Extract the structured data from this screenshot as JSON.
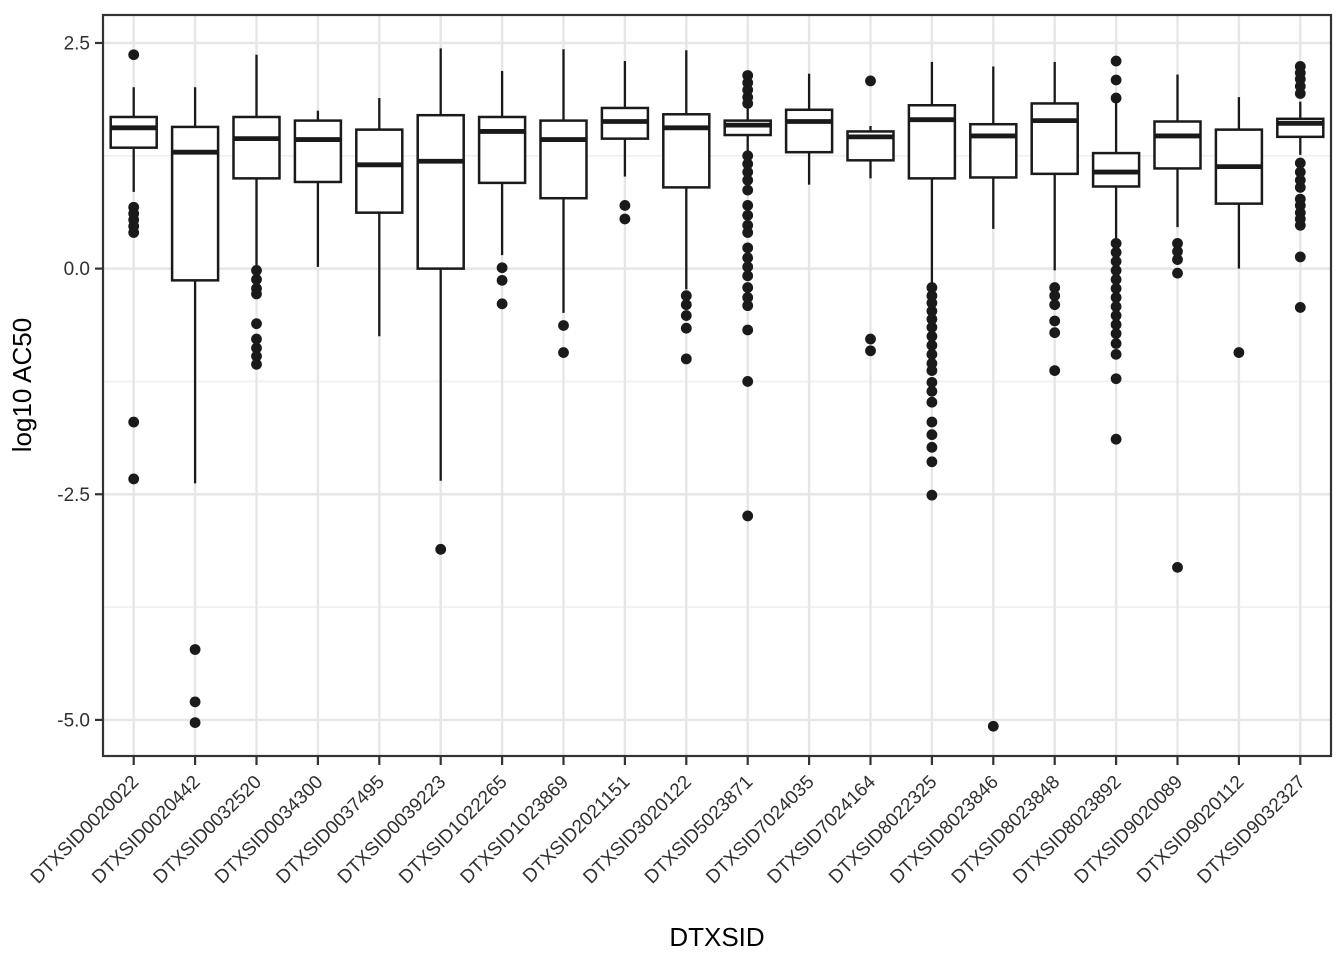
{
  "figure": {
    "kind": "ggplot-style boxplot panel",
    "background": "#ffffff"
  },
  "colors": {
    "box_stroke": "#1a1a1a",
    "box_fill": "#ffffff",
    "median": "#1a1a1a",
    "whisker": "#1a1a1a",
    "outlier": "#1a1a1a",
    "grid_major": "#e6e6e6",
    "grid_minor": "#efefef",
    "panel_border": "#333333",
    "tick_mark": "#333333",
    "tick_text": "#303030",
    "title_text": "#000000",
    "background": "#ffffff"
  },
  "chart_data": {
    "type": "boxplot",
    "title": "",
    "xlabel": "DTXSID",
    "ylabel": "log10 AC50",
    "grid": true,
    "legend": "none",
    "ylim": [
      -5.4,
      2.81
    ],
    "y_major_ticks": [
      2.5,
      0.0,
      -2.5,
      -5.0
    ],
    "y_tick_labels": [
      "2.5",
      "0.0",
      "-2.5",
      "-5.0"
    ],
    "y_minor_ticks": [
      1.25,
      -1.25,
      -3.75
    ],
    "x_tick_angle_deg": 45,
    "categories": [
      "DTXSID0020022",
      "DTXSID0020442",
      "DTXSID0032520",
      "DTXSID0034300",
      "DTXSID0037495",
      "DTXSID0039223",
      "DTXSID1022265",
      "DTXSID1023869",
      "DTXSID2021151",
      "DTXSID3020122",
      "DTXSID5023871",
      "DTXSID7024035",
      "DTXSID7024164",
      "DTXSID8022325",
      "DTXSID8023846",
      "DTXSID8023848",
      "DTXSID8023892",
      "DTXSID9020089",
      "DTXSID9020112",
      "DTXSID9032327"
    ],
    "boxes": [
      {
        "category": "DTXSID0020022",
        "whisker_low": 0.85,
        "q1": 1.34,
        "median": 1.56,
        "q3": 1.68,
        "whisker_high": 2.01,
        "outliers": [
          2.37,
          0.68,
          0.61,
          0.54,
          0.47,
          0.4,
          -1.7,
          -2.33
        ]
      },
      {
        "category": "DTXSID0020442",
        "whisker_low": -2.38,
        "q1": -0.13,
        "median": 1.29,
        "q3": 1.57,
        "whisker_high": 2.01,
        "outliers": [
          -4.22,
          -4.8,
          -5.03
        ]
      },
      {
        "category": "DTXSID0032520",
        "whisker_low": 0.02,
        "q1": 1.0,
        "median": 1.44,
        "q3": 1.68,
        "whisker_high": 2.37,
        "outliers": [
          -0.02,
          -0.12,
          -0.22,
          -0.28,
          -0.61,
          -0.78,
          -0.88,
          -0.97,
          -1.06
        ]
      },
      {
        "category": "DTXSID0034300",
        "whisker_low": 0.02,
        "q1": 0.96,
        "median": 1.43,
        "q3": 1.64,
        "whisker_high": 1.75,
        "outliers": []
      },
      {
        "category": "DTXSID0037495",
        "whisker_low": -0.75,
        "q1": 0.62,
        "median": 1.15,
        "q3": 1.54,
        "whisker_high": 1.89,
        "outliers": []
      },
      {
        "category": "DTXSID0039223",
        "whisker_low": -2.35,
        "q1": 0.0,
        "median": 1.19,
        "q3": 1.7,
        "whisker_high": 2.44,
        "outliers": [
          -3.11
        ]
      },
      {
        "category": "DTXSID1022265",
        "whisker_low": 0.15,
        "q1": 0.95,
        "median": 1.52,
        "q3": 1.68,
        "whisker_high": 2.19,
        "outliers": [
          0.01,
          -0.13,
          -0.39
        ]
      },
      {
        "category": "DTXSID1023869",
        "whisker_low": -0.49,
        "q1": 0.78,
        "median": 1.43,
        "q3": 1.64,
        "whisker_high": 2.43,
        "outliers": [
          -0.63,
          -0.93
        ]
      },
      {
        "category": "DTXSID2021151",
        "whisker_low": 1.02,
        "q1": 1.44,
        "median": 1.63,
        "q3": 1.78,
        "whisker_high": 2.3,
        "outliers": [
          0.7,
          0.55
        ]
      },
      {
        "category": "DTXSID3020122",
        "whisker_low": -0.23,
        "q1": 0.9,
        "median": 1.56,
        "q3": 1.71,
        "whisker_high": 2.42,
        "outliers": [
          -0.3,
          -0.4,
          -0.52,
          -0.66,
          -1.0
        ]
      },
      {
        "category": "DTXSID5023871",
        "whisker_low": 1.28,
        "q1": 1.48,
        "median": 1.59,
        "q3": 1.64,
        "whisker_high": 1.78,
        "outliers": [
          2.14,
          2.06,
          1.98,
          1.9,
          1.83,
          1.25,
          1.16,
          1.07,
          0.98,
          0.87,
          0.7,
          0.59,
          0.48,
          0.4,
          0.23,
          0.12,
          0.02,
          -0.08,
          -0.21,
          -0.32,
          -0.41,
          -0.68,
          -1.25,
          -2.74
        ]
      },
      {
        "category": "DTXSID7024035",
        "whisker_low": 0.93,
        "q1": 1.29,
        "median": 1.63,
        "q3": 1.76,
        "whisker_high": 2.16,
        "outliers": []
      },
      {
        "category": "DTXSID7024164",
        "whisker_low": 1.0,
        "q1": 1.2,
        "median": 1.46,
        "q3": 1.52,
        "whisker_high": 1.58,
        "outliers": [
          2.08,
          -0.78,
          -0.91
        ]
      },
      {
        "category": "DTXSID8022325",
        "whisker_low": -0.18,
        "q1": 1.0,
        "median": 1.65,
        "q3": 1.81,
        "whisker_high": 2.29,
        "outliers": [
          -0.21,
          -0.3,
          -0.38,
          -0.47,
          -0.56,
          -0.65,
          -0.75,
          -0.85,
          -0.95,
          -1.05,
          -1.13,
          -1.26,
          -1.36,
          -1.48,
          -1.7,
          -1.84,
          -1.98,
          -2.14,
          -2.51
        ]
      },
      {
        "category": "DTXSID8023846",
        "whisker_low": 0.44,
        "q1": 1.01,
        "median": 1.47,
        "q3": 1.6,
        "whisker_high": 2.24,
        "outliers": [
          -5.07
        ]
      },
      {
        "category": "DTXSID8023848",
        "whisker_low": -0.02,
        "q1": 1.05,
        "median": 1.64,
        "q3": 1.83,
        "whisker_high": 2.29,
        "outliers": [
          -0.21,
          -0.3,
          -0.4,
          -0.58,
          -0.71,
          -1.13
        ]
      },
      {
        "category": "DTXSID8023892",
        "whisker_low": 0.31,
        "q1": 0.91,
        "median": 1.07,
        "q3": 1.28,
        "whisker_high": 1.85,
        "outliers": [
          2.3,
          2.09,
          1.89,
          0.28,
          0.18,
          0.08,
          -0.02,
          -0.12,
          -0.22,
          -0.32,
          -0.42,
          -0.52,
          -0.62,
          -0.72,
          -0.83,
          -0.95,
          -1.22,
          -1.89
        ]
      },
      {
        "category": "DTXSID9020089",
        "whisker_low": 0.46,
        "q1": 1.11,
        "median": 1.47,
        "q3": 1.63,
        "whisker_high": 2.15,
        "outliers": [
          0.28,
          0.19,
          0.1,
          -0.05,
          -3.31
        ]
      },
      {
        "category": "DTXSID9020112",
        "whisker_low": 0.0,
        "q1": 0.72,
        "median": 1.13,
        "q3": 1.54,
        "whisker_high": 1.9,
        "outliers": [
          -0.93
        ]
      },
      {
        "category": "DTXSID9032327",
        "whisker_low": 1.26,
        "q1": 1.46,
        "median": 1.61,
        "q3": 1.66,
        "whisker_high": 1.85,
        "outliers": [
          2.24,
          2.17,
          2.1,
          2.02,
          1.94,
          1.17,
          1.07,
          0.98,
          0.9,
          0.77,
          0.7,
          0.62,
          0.55,
          0.48,
          0.13,
          -0.43
        ]
      }
    ]
  }
}
